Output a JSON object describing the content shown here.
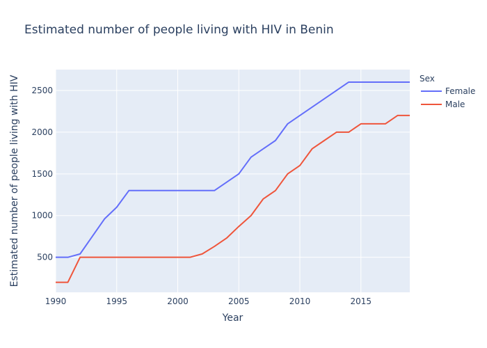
{
  "chart_data": {
    "type": "line",
    "title": "Estimated number of people living with HIV in Benin",
    "xlabel": "Year",
    "ylabel": "Estimated number of people living with HIV",
    "xlim": [
      1990,
      2019
    ],
    "ylim": [
      80,
      2750
    ],
    "x_ticks": [
      1990,
      1995,
      2000,
      2005,
      2010,
      2015
    ],
    "y_ticks": [
      500,
      1000,
      1500,
      2000,
      2500
    ],
    "grid": true,
    "legend_title": "Sex",
    "legend_placement": "right",
    "x": [
      1990,
      1991,
      1992,
      1993,
      1994,
      1995,
      1996,
      1997,
      1998,
      1999,
      2000,
      2001,
      2002,
      2003,
      2004,
      2005,
      2006,
      2007,
      2008,
      2009,
      2010,
      2011,
      2012,
      2013,
      2014,
      2015,
      2016,
      2017,
      2018,
      2019
    ],
    "series": [
      {
        "name": "Female",
        "color": "#636efa",
        "values": [
          500,
          500,
          540,
          750,
          960,
          1100,
          1300,
          1300,
          1300,
          1300,
          1300,
          1300,
          1300,
          1300,
          1400,
          1500,
          1700,
          1800,
          1900,
          2100,
          2200,
          2300,
          2400,
          2500,
          2600,
          2600,
          2600,
          2600,
          2600,
          2600
        ]
      },
      {
        "name": "Male",
        "color": "#ef553b",
        "values": [
          200,
          200,
          500,
          500,
          500,
          500,
          500,
          500,
          500,
          500,
          500,
          500,
          540,
          630,
          730,
          870,
          1000,
          1200,
          1300,
          1500,
          1600,
          1800,
          1900,
          2000,
          2000,
          2100,
          2100,
          2100,
          2200,
          2200
        ]
      }
    ]
  },
  "colors": {
    "plot_background": "#e5ecf6",
    "gridline": "#ffffff",
    "text": "#2a3f5f"
  }
}
